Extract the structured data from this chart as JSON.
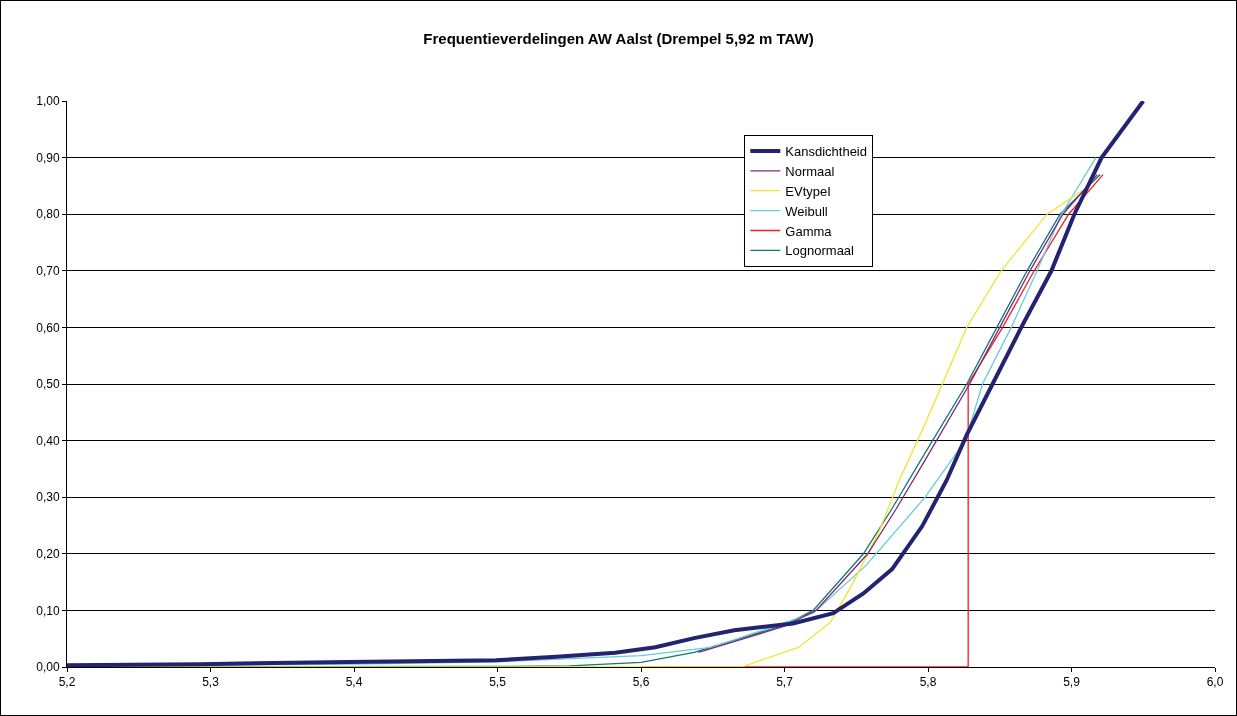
{
  "chart_data": {
    "type": "line",
    "title": "Frequentieverdelingen AW Aalst (Drempel 5,92 m TAW)",
    "xlim": [
      5.2,
      6.0
    ],
    "xticks": [
      {
        "value": 5.2,
        "label": "5,2"
      },
      {
        "value": 5.3,
        "label": "5,3"
      },
      {
        "value": 5.4,
        "label": "5,4"
      },
      {
        "value": 5.5,
        "label": "5,5"
      },
      {
        "value": 5.6,
        "label": "5,6"
      },
      {
        "value": 5.7,
        "label": "5,7"
      },
      {
        "value": 5.8,
        "label": "5,8"
      },
      {
        "value": 5.9,
        "label": "5,9"
      },
      {
        "value": 6.0,
        "label": "6,0"
      }
    ],
    "ylim": [
      0,
      1
    ],
    "yticks": [
      {
        "value": 0,
        "label": "0,00"
      },
      {
        "value": 0.1,
        "label": "0,10"
      },
      {
        "value": 0.2,
        "label": "0,20"
      },
      {
        "value": 0.3,
        "label": "0,30"
      },
      {
        "value": 0.4,
        "label": "0,40"
      },
      {
        "value": 0.5,
        "label": "0,50"
      },
      {
        "value": 0.6,
        "label": "0,60"
      },
      {
        "value": 0.7,
        "label": "0,70"
      },
      {
        "value": 0.8,
        "label": "0,80"
      },
      {
        "value": 0.9,
        "label": "0,90"
      },
      {
        "value": 1.0,
        "label": "1,00"
      }
    ],
    "grid": "y",
    "legend": "top right",
    "marker": "none",
    "line_style": "solid",
    "series": [
      {
        "name": "Kansdichtheid",
        "color": "#232370",
        "x": [
          5.2,
          5.292,
          5.396,
          5.499,
          5.541,
          5.582,
          5.61,
          5.637,
          5.665,
          5.706,
          5.734,
          5.755,
          5.775,
          5.796,
          5.813,
          5.827,
          5.845,
          5.865,
          5.886,
          5.902,
          5.921,
          5.95
        ],
        "values": [
          0.003,
          0.005,
          0.009,
          0.012,
          0.018,
          0.025,
          0.035,
          0.051,
          0.065,
          0.077,
          0.095,
          0.13,
          0.173,
          0.249,
          0.33,
          0.41,
          0.5,
          0.6,
          0.7,
          0.8,
          0.9,
          1.0
        ]
      },
      {
        "name": "Normaal",
        "color": "#7b2a7b",
        "x": [
          5.64,
          5.7,
          5.722,
          5.758,
          5.778,
          5.799,
          5.829,
          5.85,
          5.871,
          5.894,
          5.918
        ],
        "values": [
          0.026,
          0.072,
          0.1,
          0.2,
          0.28,
          0.37,
          0.5,
          0.6,
          0.7,
          0.8,
          0.87
        ]
      },
      {
        "name": "EVtypeI",
        "color": "#f0e630",
        "x": [
          5.2,
          5.67,
          5.71,
          5.732,
          5.748,
          5.766,
          5.78,
          5.798,
          5.81,
          5.827,
          5.851,
          5.883,
          5.909
        ],
        "values": [
          0,
          0,
          0.035,
          0.079,
          0.15,
          0.24,
          0.33,
          0.43,
          0.5,
          0.6,
          0.7,
          0.8,
          0.844
        ]
      },
      {
        "name": "Weibull",
        "color": "#66ccdd",
        "x": [
          5.2,
          5.4,
          5.5,
          5.6,
          5.65,
          5.695,
          5.72,
          5.757,
          5.798,
          5.826,
          5.838,
          5.858,
          5.876,
          5.893,
          5.917
        ],
        "values": [
          0.002,
          0.005,
          0.009,
          0.02,
          0.035,
          0.074,
          0.095,
          0.18,
          0.3,
          0.4,
          0.5,
          0.6,
          0.7,
          0.8,
          0.9
        ]
      },
      {
        "name": "Gamma",
        "color": "#ee2222",
        "x": [
          5.6,
          5.828,
          5.828,
          5.852,
          5.874,
          5.898,
          5.922
        ],
        "values": [
          0,
          0,
          0.5,
          0.6,
          0.7,
          0.8,
          0.87
        ]
      },
      {
        "name": "Lognormaal",
        "color": "#117777",
        "x": [
          5.2,
          5.5,
          5.55,
          5.6,
          5.637,
          5.7,
          5.72,
          5.755,
          5.775,
          5.796,
          5.827,
          5.848,
          5.869,
          5.892,
          5.92
        ],
        "values": [
          0,
          0.001,
          0.002,
          0.008,
          0.026,
          0.074,
          0.1,
          0.2,
          0.28,
          0.37,
          0.5,
          0.6,
          0.7,
          0.8,
          0.87
        ]
      }
    ]
  }
}
